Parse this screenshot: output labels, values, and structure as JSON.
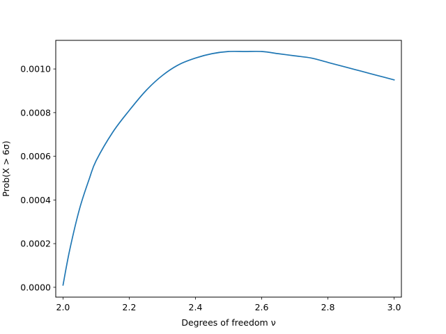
{
  "chart_data": {
    "type": "line",
    "title": "",
    "xlabel": "Degrees of freedom ν",
    "ylabel": "Prob(X > 6σ)",
    "xlim": [
      1.978,
      3.022
    ],
    "ylim": [
      -4.5e-05,
      0.001131
    ],
    "grid": false,
    "legend": "none",
    "x_ticks": [
      2.0,
      2.2,
      2.4,
      2.6,
      2.8,
      3.0
    ],
    "x_tick_labels": [
      "2.0",
      "2.2",
      "2.4",
      "2.6",
      "2.8",
      "3.0"
    ],
    "y_ticks": [
      0.0,
      0.0002,
      0.0004,
      0.0006,
      0.0008,
      0.001
    ],
    "y_tick_labels": [
      "0.0000",
      "0.0002",
      "0.0004",
      "0.0006",
      "0.0008",
      "0.0010"
    ],
    "series": [
      {
        "color": "#1f77b4",
        "x": [
          2.0,
          2.02,
          2.05,
          2.08,
          2.1,
          2.15,
          2.2,
          2.25,
          2.3,
          2.35,
          2.4,
          2.45,
          2.5,
          2.55,
          2.6,
          2.65,
          2.7,
          2.75,
          2.8,
          2.85,
          2.9,
          2.95,
          3.0
        ],
        "y": [
          1e-05,
          0.00017,
          0.00036,
          0.0005,
          0.00058,
          0.00071,
          0.00081,
          0.0009,
          0.00097,
          0.00102,
          0.00105,
          0.00107,
          0.00108,
          0.00108,
          0.00108,
          0.00107,
          0.00106,
          0.00105,
          0.00103,
          0.00101,
          0.00099,
          0.00097,
          0.00095
        ]
      }
    ]
  }
}
